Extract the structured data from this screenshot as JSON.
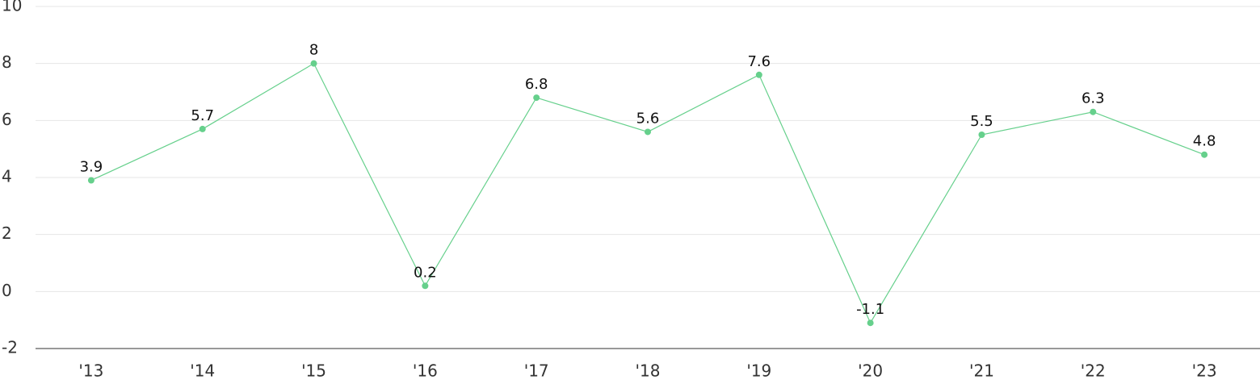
{
  "chart_data": {
    "type": "line",
    "categories": [
      "'13",
      "'14",
      "'15",
      "'16",
      "'17",
      "'18",
      "'19",
      "'20",
      "'21",
      "'22",
      "'23"
    ],
    "values": [
      3.9,
      5.7,
      8,
      0.2,
      6.8,
      5.6,
      7.6,
      -1.1,
      5.5,
      6.3,
      4.8
    ],
    "color": "#66d08c",
    "ylim": [
      -2,
      10
    ],
    "yticks": [
      -2,
      0,
      2,
      4,
      6,
      8,
      10
    ],
    "grid": true
  }
}
